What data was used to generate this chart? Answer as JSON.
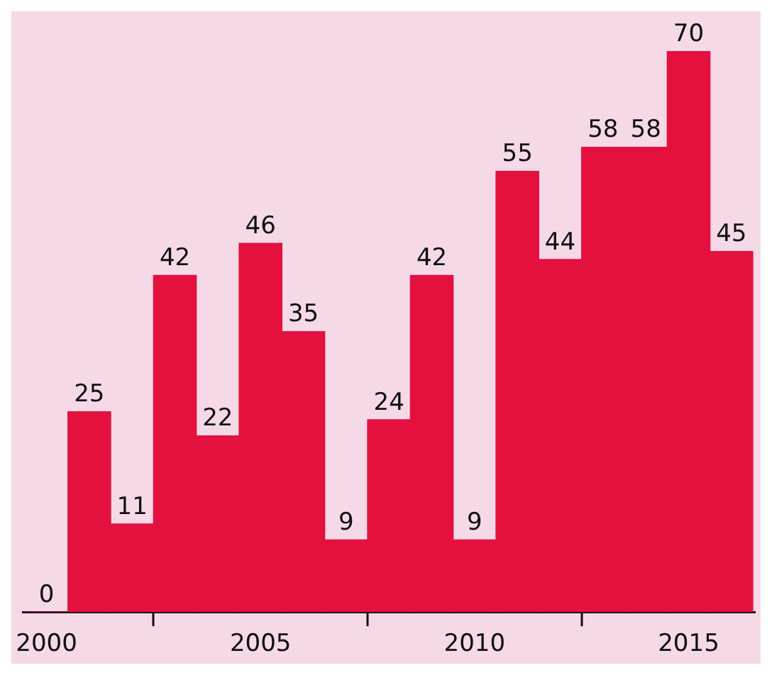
{
  "chart_data": {
    "type": "bar",
    "x": [
      2000,
      2001,
      2002,
      2003,
      2004,
      2005,
      2006,
      2007,
      2008,
      2009,
      2010,
      2011,
      2012,
      2013,
      2014,
      2015,
      2016
    ],
    "values": [
      0,
      25,
      11,
      42,
      22,
      46,
      35,
      9,
      24,
      42,
      9,
      55,
      44,
      58,
      58,
      70,
      45
    ],
    "color": "#e4113f",
    "data_labels": true,
    "xlim": [
      1999.45,
      2016.55
    ],
    "xticks": [
      2000,
      2005,
      2010,
      2015
    ],
    "tick_labels": "x",
    "legend": false
  }
}
